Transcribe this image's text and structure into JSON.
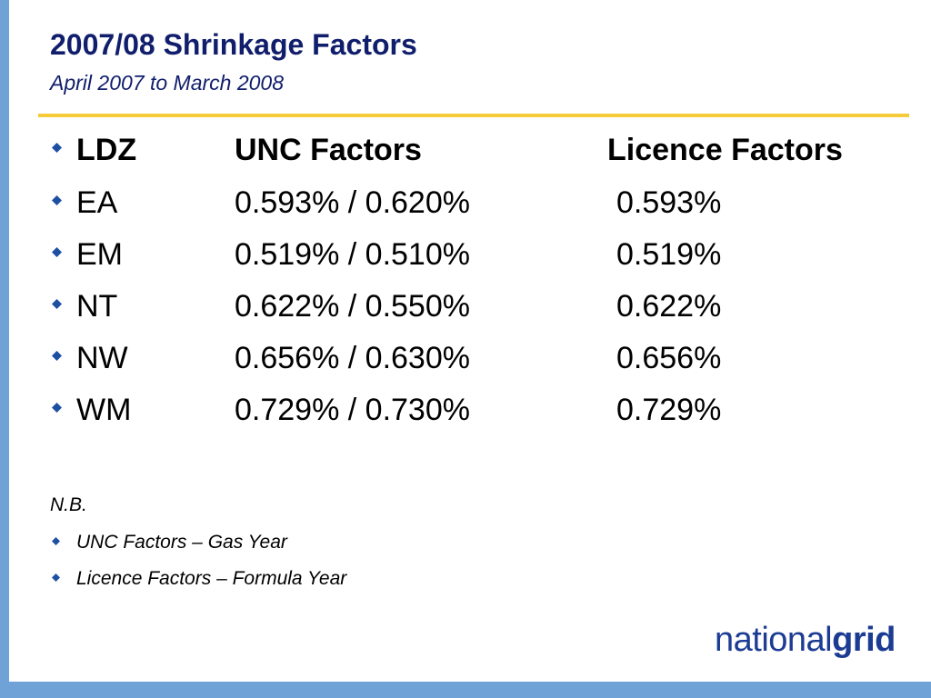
{
  "slide": {
    "title": "2007/08 Shrinkage Factors",
    "subtitle": "April 2007 to March 2008"
  },
  "table": {
    "headers": [
      "LDZ",
      "UNC Factors",
      "Licence Factors"
    ],
    "rows": [
      [
        "EA",
        "0.593% / 0.620%",
        "0.593%"
      ],
      [
        "EM",
        "0.519% / 0.510%",
        "0.519%"
      ],
      [
        "NT",
        "0.622% / 0.550%",
        "0.622%"
      ],
      [
        "NW",
        "0.656% / 0.630%",
        "0.656%"
      ],
      [
        "WM",
        "0.729% / 0.730%",
        "0.729%"
      ]
    ]
  },
  "notes": {
    "label": "N.B.",
    "items": [
      "UNC Factors – Gas Year",
      "Licence Factors – Formula Year"
    ]
  },
  "logo": {
    "part1": "national",
    "part2": "grid"
  },
  "colors": {
    "title": "#111e6c",
    "accent_bar": "#6fa3d8",
    "rule": "#f5cb3a",
    "bullet": "#1d4fa3",
    "logo": "#1c3c93"
  }
}
